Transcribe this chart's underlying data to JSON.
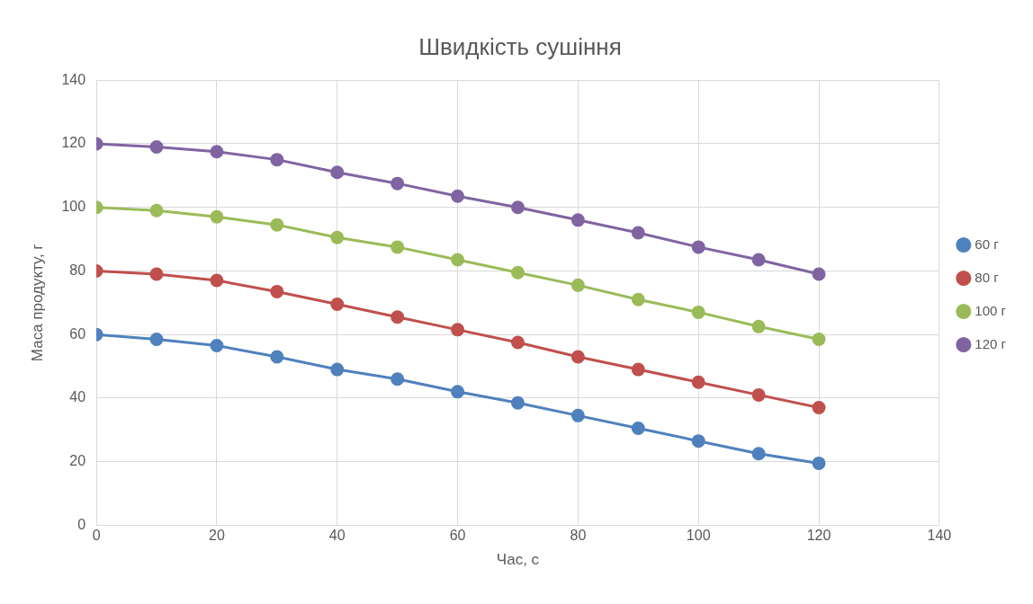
{
  "chart_data": {
    "type": "line",
    "title": "Швидкість сушіння",
    "xlabel": "Час, с",
    "ylabel": "Маса продукту, г",
    "x": [
      0,
      10,
      20,
      30,
      40,
      50,
      60,
      70,
      80,
      90,
      100,
      110,
      120
    ],
    "xlim": [
      0,
      140
    ],
    "xticks": [
      0,
      20,
      40,
      60,
      80,
      100,
      120,
      140
    ],
    "ylim": [
      0,
      140
    ],
    "yticks": [
      0,
      20,
      40,
      60,
      80,
      100,
      120,
      140
    ],
    "grid": true,
    "legend": "right",
    "marker": "circle",
    "line_style": "solid",
    "series": [
      {
        "name": "60 г",
        "color": "#4f81bd",
        "values": [
          60,
          58.5,
          56.5,
          53,
          49,
          46,
          42,
          38.5,
          34.5,
          30.5,
          26.5,
          22.5,
          19.5
        ]
      },
      {
        "name": "80 г",
        "color": "#c0504d",
        "values": [
          80,
          79,
          77,
          73.5,
          69.5,
          65.5,
          61.5,
          57.5,
          53,
          49,
          45,
          41,
          37
        ]
      },
      {
        "name": "100 г",
        "color": "#9bbb59",
        "values": [
          100,
          99,
          97,
          94.5,
          90.5,
          87.5,
          83.5,
          79.5,
          75.5,
          71,
          67,
          62.5,
          58.5
        ]
      },
      {
        "name": "120 г",
        "color": "#8064a2",
        "values": [
          120,
          119,
          117.5,
          115,
          111,
          107.5,
          103.5,
          100,
          96,
          92,
          87.5,
          83.5,
          79
        ]
      }
    ]
  }
}
